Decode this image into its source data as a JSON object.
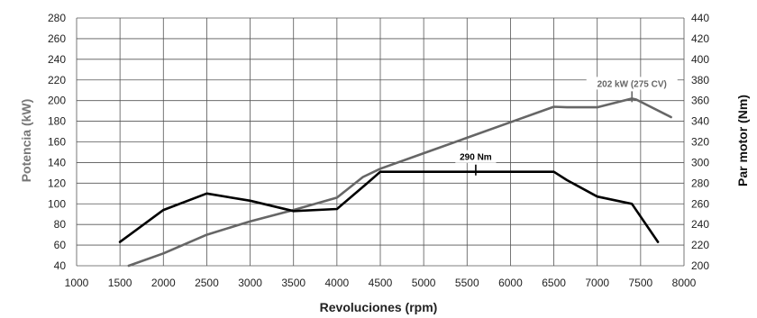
{
  "chart_data": {
    "type": "line",
    "x": [
      1500,
      1600,
      2000,
      2500,
      3000,
      3500,
      4000,
      4300,
      4500,
      5000,
      5500,
      6000,
      6500,
      6650,
      7000,
      7400,
      7450,
      7850
    ],
    "xlabel": "Revoluciones (rpm)",
    "xlim": [
      1000,
      8000
    ],
    "xticks": [
      1000,
      1500,
      2000,
      2500,
      3000,
      3500,
      4000,
      4500,
      5000,
      5500,
      6000,
      6500,
      7000,
      7500,
      8000
    ],
    "ylabel": "Potencia (kW)",
    "ylim": [
      40,
      280
    ],
    "yticks": [
      40,
      60,
      80,
      100,
      120,
      140,
      160,
      180,
      200,
      220,
      240,
      260,
      280
    ],
    "y2label": "Par motor (Nm)",
    "y2lim": [
      200,
      440
    ],
    "y2ticks": [
      200,
      220,
      240,
      260,
      280,
      300,
      320,
      340,
      360,
      380,
      400,
      420,
      440
    ],
    "grid": true,
    "series": [
      {
        "axis": "left",
        "color": "#666666",
        "points": [
          [
            1600,
            40
          ],
          [
            2000,
            52
          ],
          [
            2500,
            70
          ],
          [
            3000,
            83
          ],
          [
            3500,
            94
          ],
          [
            4000,
            106
          ],
          [
            4300,
            126
          ],
          [
            4500,
            134
          ],
          [
            5000,
            149
          ],
          [
            5500,
            164
          ],
          [
            6000,
            179
          ],
          [
            6500,
            194
          ],
          [
            6650,
            193.5
          ],
          [
            7000,
            193.5
          ],
          [
            7400,
            202
          ],
          [
            7450,
            201
          ],
          [
            7850,
            184
          ]
        ]
      },
      {
        "axis": "right",
        "color": "#000000",
        "points": [
          [
            1500,
            223
          ],
          [
            2000,
            254
          ],
          [
            2500,
            270
          ],
          [
            3000,
            263
          ],
          [
            3500,
            253
          ],
          [
            4000,
            255
          ],
          [
            4350,
            280
          ],
          [
            4500,
            291
          ],
          [
            5000,
            291
          ],
          [
            5500,
            291
          ],
          [
            6000,
            291
          ],
          [
            6500,
            291
          ],
          [
            6650,
            283
          ],
          [
            7000,
            267
          ],
          [
            7400,
            260
          ],
          [
            7700,
            223
          ]
        ]
      }
    ],
    "annotations": [
      {
        "text": "202 kW (275 CV)",
        "x": 7400,
        "y": 202,
        "axis": "left",
        "color": "#666666"
      },
      {
        "text": "290 Nm",
        "x": 5600,
        "y": 291,
        "axis": "right",
        "color": "#000000"
      }
    ]
  }
}
